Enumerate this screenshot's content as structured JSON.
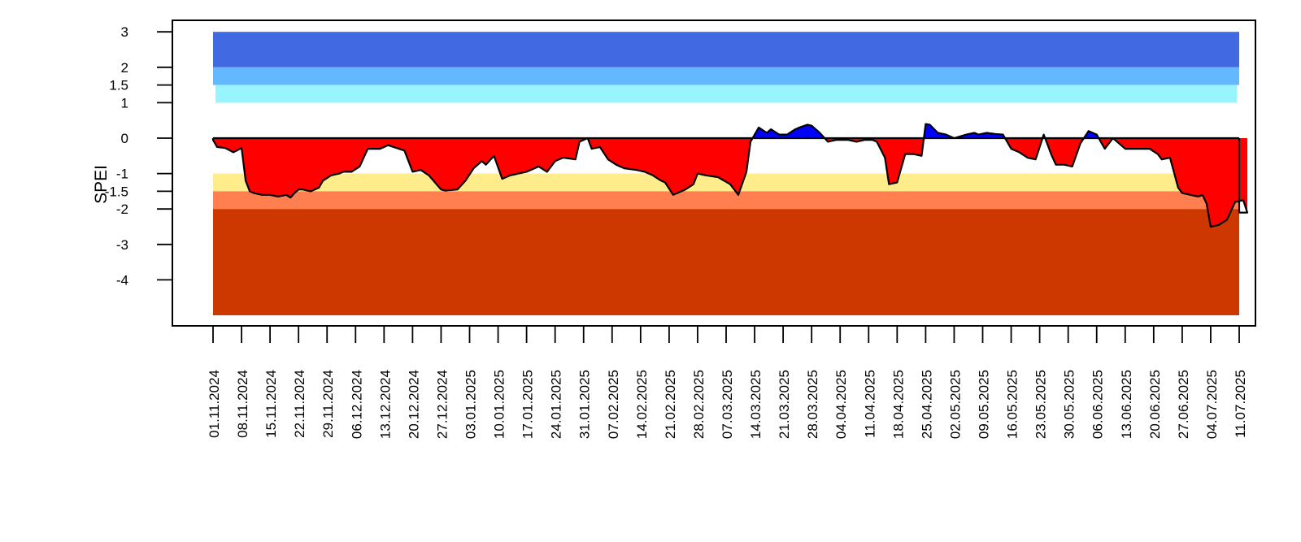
{
  "chart_data": {
    "type": "area",
    "title": "",
    "xlabel": "",
    "ylabel": "SPEI",
    "ylim": [
      -5,
      3
    ],
    "grid": false,
    "y_ticks": [
      "3",
      "2",
      "1.5",
      "1",
      "0",
      "-1",
      "-1.5",
      "-2",
      "-3",
      "-4"
    ],
    "x_tick_labels": [
      "01.11.2024",
      "08.11.2024",
      "15.11.2024",
      "22.11.2024",
      "29.11.2024",
      "06.12.2024",
      "13.12.2024",
      "20.12.2024",
      "27.12.2024",
      "03.01.2025",
      "10.01.2025",
      "17.01.2025",
      "24.01.2025",
      "31.01.2025",
      "07.02.2025",
      "14.02.2025",
      "21.02.2025",
      "28.02.2025",
      "07.03.2025",
      "14.03.2025",
      "21.03.2025",
      "28.03.2025",
      "04.04.2025",
      "11.04.2025",
      "18.04.2025",
      "25.04.2025",
      "02.05.2025",
      "09.05.2025",
      "16.05.2025",
      "23.05.2025",
      "30.05.2025",
      "06.06.2025",
      "13.06.2025",
      "20.06.2025",
      "27.06.2025",
      "04.07.2025",
      "11.07.2025"
    ],
    "classification_bands": [
      {
        "lower": 2,
        "upper": 3,
        "color": "#4169E1"
      },
      {
        "lower": 1.5,
        "upper": 2,
        "color": "#63B8FF"
      },
      {
        "lower": 1,
        "upper": 1.5,
        "color": "#98F5FF"
      },
      {
        "lower": -1.5,
        "upper": -1,
        "color": "#FFEC8B"
      },
      {
        "lower": -2,
        "upper": -1.5,
        "color": "#FF7F50"
      },
      {
        "lower": -5,
        "upper": -2,
        "color": "#CD3700"
      }
    ],
    "fill_colors": {
      "positive": "#0000FF",
      "negative": "#FF0000",
      "line": "#000000"
    },
    "series": [
      {
        "x": [
          "01.11.2024",
          "02.11.2024",
          "04.11.2024",
          "06.11.2024",
          "08.11.2024",
          "09.11.2024",
          "10.11.2024",
          "11.11.2024",
          "13.11.2024",
          "15.11.2024",
          "17.11.2024",
          "19.11.2024",
          "20.11.2024",
          "21.11.2024",
          "22.11.2024",
          "23.11.2024",
          "25.11.2024",
          "27.11.2024",
          "28.11.2024",
          "30.11.2024",
          "02.12.2024",
          "03.12.2024",
          "05.12.2024",
          "07.12.2024",
          "09.12.2024",
          "11.12.2024",
          "12.12.2024",
          "14.12.2024",
          "18.12.2024",
          "20.12.2024",
          "22.12.2024",
          "24.12.2024",
          "27.12.2024",
          "28.12.2024",
          "31.12.2024",
          "02.01.2025",
          "04.01.2025",
          "06.01.2025",
          "07.01.2025",
          "09.01.2025",
          "11.01.2025",
          "13.01.2025",
          "15.01.2025",
          "17.01.2025",
          "20.01.2025",
          "22.01.2025",
          "24.01.2025",
          "26.01.2025",
          "29.01.2025",
          "30.01.2025",
          "01.02.2025",
          "02.02.2025",
          "04.02.2025",
          "06.02.2025",
          "08.02.2025",
          "10.02.2025",
          "13.02.2025",
          "15.02.2025",
          "17.02.2025",
          "19.02.2025",
          "20.02.2025",
          "22.02.2025",
          "23.02.2025",
          "25.02.2025",
          "27.02.2025",
          "28.02.2025",
          "02.03.2025",
          "05.03.2025",
          "08.03.2025",
          "10.03.2025",
          "12.03.2025",
          "13.03.2025",
          "15.03.2025",
          "17.03.2025",
          "18.03.2025",
          "20.03.2025",
          "22.03.2025",
          "24.03.2025",
          "25.03.2025",
          "27.03.2025",
          "28.03.2025",
          "30.03.2025",
          "01.04.2025",
          "03.04.2025",
          "06.04.2025",
          "08.04.2025",
          "10.04.2025",
          "12.04.2025",
          "13.04.2025",
          "15.04.2025",
          "16.04.2025",
          "18.04.2025",
          "20.04.2025",
          "22.04.2025",
          "24.04.2025",
          "25.04.2025",
          "26.04.2025",
          "28.04.2025",
          "30.04.2025",
          "02.05.2025",
          "05.05.2025",
          "07.05.2025",
          "08.05.2025",
          "10.05.2025",
          "12.05.2025",
          "14.05.2025",
          "16.05.2025",
          "18.05.2025",
          "20.05.2025",
          "22.05.2025",
          "24.05.2025",
          "26.05.2025",
          "27.05.2025",
          "29.05.2025",
          "31.05.2025",
          "02.06.2025",
          "04.06.2025",
          "06.06.2025",
          "08.06.2025",
          "10.06.2025",
          "13.06.2025",
          "17.06.2025",
          "19.06.2025",
          "21.06.2025",
          "22.06.2025",
          "24.06.2025",
          "26.06.2025",
          "27.06.2025",
          "29.06.2025",
          "01.07.2025",
          "02.07.2025",
          "03.07.2025",
          "04.07.2025",
          "06.07.2025",
          "08.07.2025",
          "10.07.2025",
          "12.07.2025",
          "13.07.2025"
        ],
        "values": [
          -0.05,
          -0.25,
          -0.28,
          -0.4,
          -0.28,
          -1.2,
          -1.5,
          -1.55,
          -1.6,
          -1.6,
          -1.65,
          -1.6,
          -1.68,
          -1.55,
          -1.45,
          -1.45,
          -1.5,
          -1.4,
          -1.2,
          -1.05,
          -1.0,
          -0.95,
          -0.95,
          -0.8,
          -0.3,
          -0.3,
          -0.3,
          -0.2,
          -0.35,
          -0.95,
          -0.9,
          -1.05,
          -1.45,
          -1.48,
          -1.45,
          -1.2,
          -0.85,
          -0.65,
          -0.75,
          -0.5,
          -1.15,
          -1.05,
          -1.0,
          -0.95,
          -0.8,
          -0.95,
          -0.65,
          -0.55,
          -0.6,
          -0.1,
          0.0,
          -0.3,
          -0.25,
          -0.6,
          -0.75,
          -0.85,
          -0.9,
          -0.95,
          -1.05,
          -1.2,
          -1.25,
          -1.6,
          -1.55,
          -1.45,
          -1.3,
          -1.0,
          -1.05,
          -1.1,
          -1.3,
          -1.6,
          -0.95,
          -0.1,
          0.3,
          0.15,
          0.25,
          0.1,
          0.1,
          0.25,
          0.3,
          0.38,
          0.35,
          0.15,
          -0.1,
          -0.05,
          -0.05,
          -0.1,
          -0.05,
          -0.05,
          -0.1,
          -0.55,
          -1.3,
          -1.25,
          -0.45,
          -0.45,
          -0.5,
          0.4,
          0.38,
          0.15,
          0.1,
          0.0,
          0.1,
          0.15,
          0.1,
          0.15,
          0.12,
          0.1,
          -0.3,
          -0.4,
          -0.55,
          -0.6,
          0.1,
          -0.5,
          -0.75,
          -0.75,
          -0.8,
          -0.15,
          0.2,
          0.1,
          -0.3,
          0.0,
          -0.3,
          -0.3,
          -0.3,
          -0.45,
          -0.6,
          -0.55,
          -1.4,
          -1.55,
          -1.6,
          -1.65,
          -1.6,
          -1.85,
          -2.5,
          -2.45,
          -2.3,
          -1.8,
          -1.75,
          -2.1
        ]
      }
    ]
  }
}
